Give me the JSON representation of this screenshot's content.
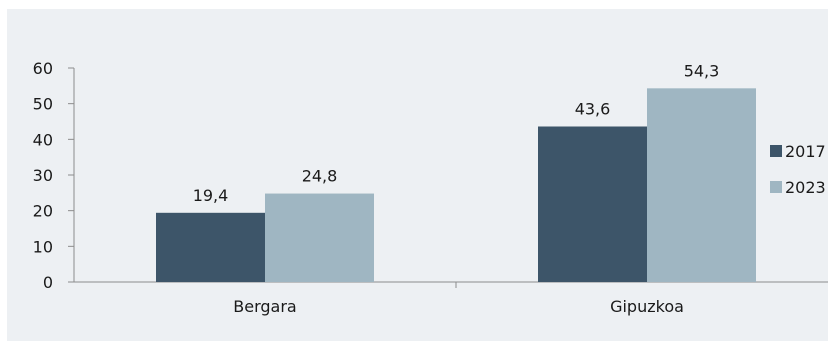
{
  "chart_data": {
    "type": "bar",
    "title": "",
    "xlabel": "",
    "ylabel": "",
    "categories": [
      "Bergara",
      "Gipuzkoa"
    ],
    "series": [
      {
        "name": "2017",
        "color": "#3d5569",
        "values": [
          19.4,
          43.6
        ],
        "labels": [
          "19,4",
          "43,6"
        ]
      },
      {
        "name": "2023",
        "color": "#9fb6c2",
        "values": [
          24.8,
          54.3
        ],
        "labels": [
          "24,8",
          "54,3"
        ]
      }
    ],
    "ylim": [
      0,
      60
    ],
    "yticks": [
      0,
      10,
      20,
      30,
      40,
      50,
      60
    ],
    "grid": false,
    "legend": "right",
    "background": "#edf0f3"
  }
}
